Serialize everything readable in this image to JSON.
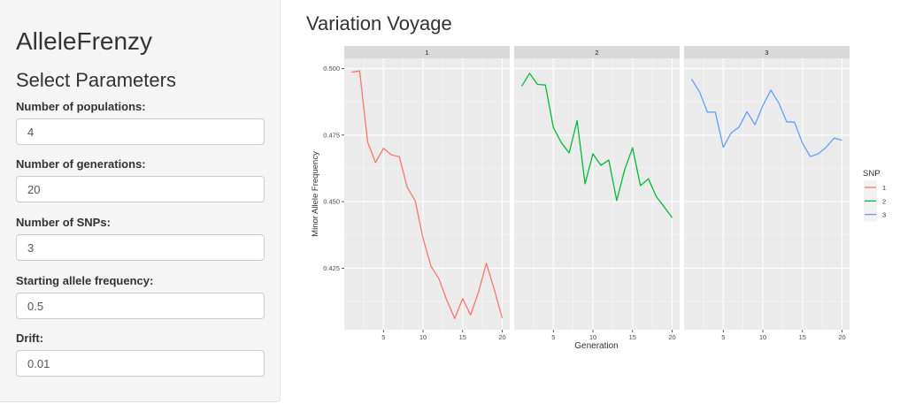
{
  "sidebar": {
    "app_title": "AlleleFrenzy",
    "section_title": "Select Parameters",
    "fields": [
      {
        "label": "Number of populations:",
        "value": "4"
      },
      {
        "label": "Number of generations:",
        "value": "20"
      },
      {
        "label": "Number of SNPs:",
        "value": "3"
      },
      {
        "label": "Starting allele frequency:",
        "value": "0.5"
      },
      {
        "label": "Drift:",
        "value": "0.01"
      }
    ]
  },
  "main": {
    "title": "Variation Voyage"
  },
  "chart_data": {
    "type": "line",
    "title": "",
    "xlabel": "Generation",
    "ylabel": "Minor Allele Frequency",
    "facets": [
      "1",
      "2",
      "3"
    ],
    "x": [
      1,
      2,
      3,
      4,
      5,
      6,
      7,
      8,
      9,
      10,
      11,
      12,
      13,
      14,
      15,
      16,
      17,
      18,
      19,
      20
    ],
    "x_ticks": [
      5,
      10,
      15,
      20
    ],
    "y_ticks": [
      0.425,
      0.45,
      0.475,
      0.5
    ],
    "y_tick_labels": [
      "0.425",
      "0.450",
      "0.475",
      "0.500"
    ],
    "xlim": [
      0.05,
      20.95
    ],
    "ylim": [
      0.4019,
      0.5038
    ],
    "grid": true,
    "legend": {
      "title": "SNP",
      "position": "right",
      "entries": [
        "1",
        "2",
        "3"
      ]
    },
    "series": [
      {
        "name": "1",
        "facet": "1",
        "color": "#F8766D",
        "values": [
          0.4986,
          0.4991,
          0.4724,
          0.4647,
          0.47,
          0.4676,
          0.4669,
          0.4554,
          0.4504,
          0.4363,
          0.4258,
          0.4211,
          0.413,
          0.4061,
          0.4136,
          0.4074,
          0.416,
          0.4269,
          0.4169,
          0.4063
        ]
      },
      {
        "name": "2",
        "facet": "2",
        "color": "#00BA38",
        "values": [
          0.4933,
          0.4982,
          0.494,
          0.4938,
          0.4778,
          0.4722,
          0.4683,
          0.4804,
          0.4567,
          0.468,
          0.4636,
          0.4656,
          0.4504,
          0.4619,
          0.4702,
          0.456,
          0.4586,
          0.4519,
          0.448,
          0.444
        ]
      },
      {
        "name": "3",
        "facet": "3",
        "color": "#619CFF",
        "values": [
          0.496,
          0.4913,
          0.4836,
          0.4836,
          0.4704,
          0.4758,
          0.478,
          0.4838,
          0.4789,
          0.486,
          0.4919,
          0.4871,
          0.48,
          0.4798,
          0.4719,
          0.4669,
          0.468,
          0.4704,
          0.4739,
          0.473
        ]
      }
    ]
  }
}
